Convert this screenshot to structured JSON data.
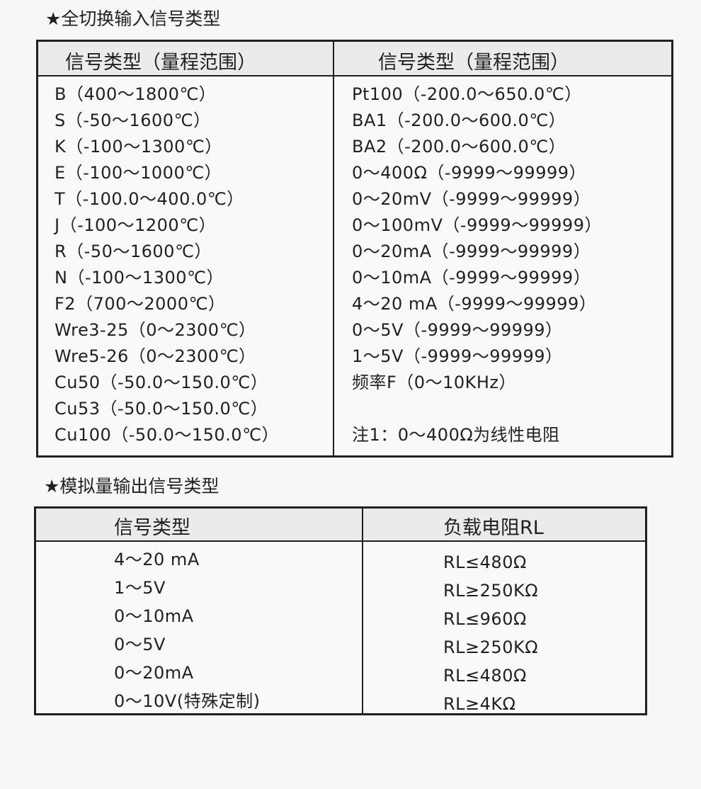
{
  "section1": {
    "title": "★全切换输入信号类型",
    "headers": [
      "信号类型（量程范围）",
      "信号类型（量程范围）"
    ],
    "left": [
      "B（400～1800℃）",
      "S（-50～1600℃）",
      "K（-100～1300℃）",
      "E（-100～1000℃）",
      "T（-100.0～400.0℃）",
      "J（-100～1200℃）",
      "R（-50～1600℃）",
      "N（-100～1300℃）",
      "F2（700～2000℃）",
      "Wre3-25（0～2300℃）",
      "Wre5-26（0～2300℃）",
      "Cu50（-50.0～150.0℃）",
      "Cu53（-50.0～150.0℃）",
      "Cu100（-50.0～150.0℃）"
    ],
    "right": [
      "Pt100（-200.0～650.0℃）",
      "BA1（-200.0～600.0℃）",
      "BA2（-200.0～600.0℃）",
      "0～400Ω（-9999～99999）",
      "0～20mV（-9999～99999）",
      "0～100mV（-9999～99999）",
      "0～20mA（-9999～99999）",
      "0～10mA（-9999～99999）",
      "4～20 mA（-9999～99999）",
      "0～5V（-9999～99999）",
      "1～5V（-9999～99999）",
      "频率F（0～10KHz）",
      "",
      "注1：0～400Ω为线性电阻"
    ]
  },
  "section2": {
    "title": "★模拟量输出信号类型",
    "headers": [
      "信号类型",
      "负载电阻RL"
    ],
    "left": [
      "4～20 mA",
      "1～5V",
      "0～10mA",
      "0～5V",
      "0～20mA",
      "0～10V(特殊定制)"
    ],
    "right": [
      "RL≤480Ω",
      "RL≥250KΩ",
      "RL≤960Ω",
      "RL≥250KΩ",
      "RL≤480Ω",
      "RL≥4KΩ"
    ]
  }
}
